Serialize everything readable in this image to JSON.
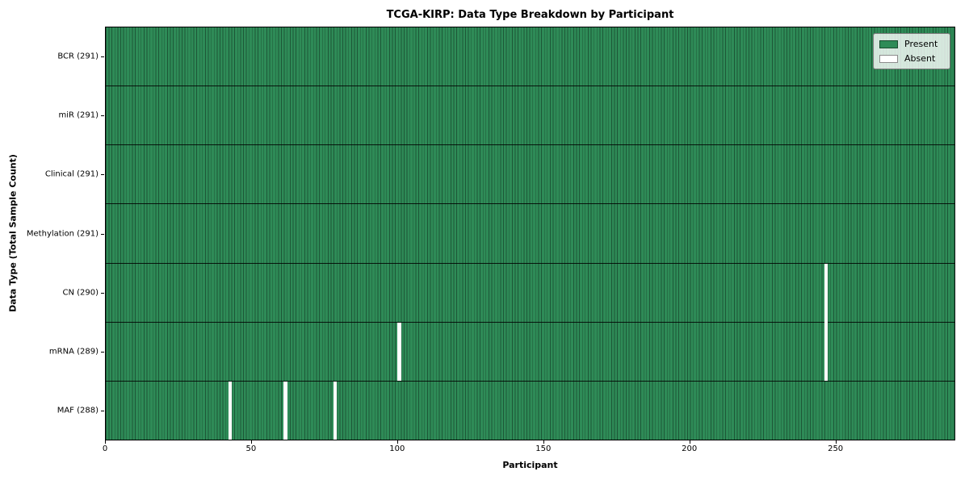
{
  "chart_data": {
    "type": "heatmap",
    "title": "TCGA-KIRP: Data Type Breakdown by Participant",
    "xlabel": "Participant",
    "ylabel": "Data Type (Total Sample Count)",
    "xlim": [
      0,
      291
    ],
    "x_ticks": [
      0,
      50,
      100,
      150,
      200,
      250
    ],
    "n_participants": 291,
    "grid": false,
    "legend": {
      "position": "upper right",
      "items": [
        {
          "label": "Present",
          "color": "#2e8b57"
        },
        {
          "label": "Absent",
          "color": "#ffffff"
        }
      ]
    },
    "rows": [
      {
        "tick_label": "BCR (291)",
        "data_type": "BCR",
        "total_samples": 291,
        "absent_participants": []
      },
      {
        "tick_label": "miR (291)",
        "data_type": "miR",
        "total_samples": 291,
        "absent_participants": []
      },
      {
        "tick_label": "Clinical (291)",
        "data_type": "Clinical",
        "total_samples": 291,
        "absent_participants": []
      },
      {
        "tick_label": "Methylation (291)",
        "data_type": "Methylation",
        "total_samples": 291,
        "absent_participants": []
      },
      {
        "tick_label": "CN (290)",
        "data_type": "CN",
        "total_samples": 290,
        "absent_participants": [
          246
        ]
      },
      {
        "tick_label": "mRNA (289)",
        "data_type": "mRNA",
        "total_samples": 289,
        "absent_participants": [
          100,
          246
        ]
      },
      {
        "tick_label": "MAF (288)",
        "data_type": "MAF",
        "total_samples": 288,
        "absent_participants": [
          42,
          61,
          78
        ]
      }
    ],
    "colors": {
      "present": "#2e8b57",
      "absent": "#ffffff",
      "bar_edge": "#1d5737",
      "row_divider": "#111111",
      "axis": "#000000",
      "legend_border": "#7a7a7a"
    }
  }
}
